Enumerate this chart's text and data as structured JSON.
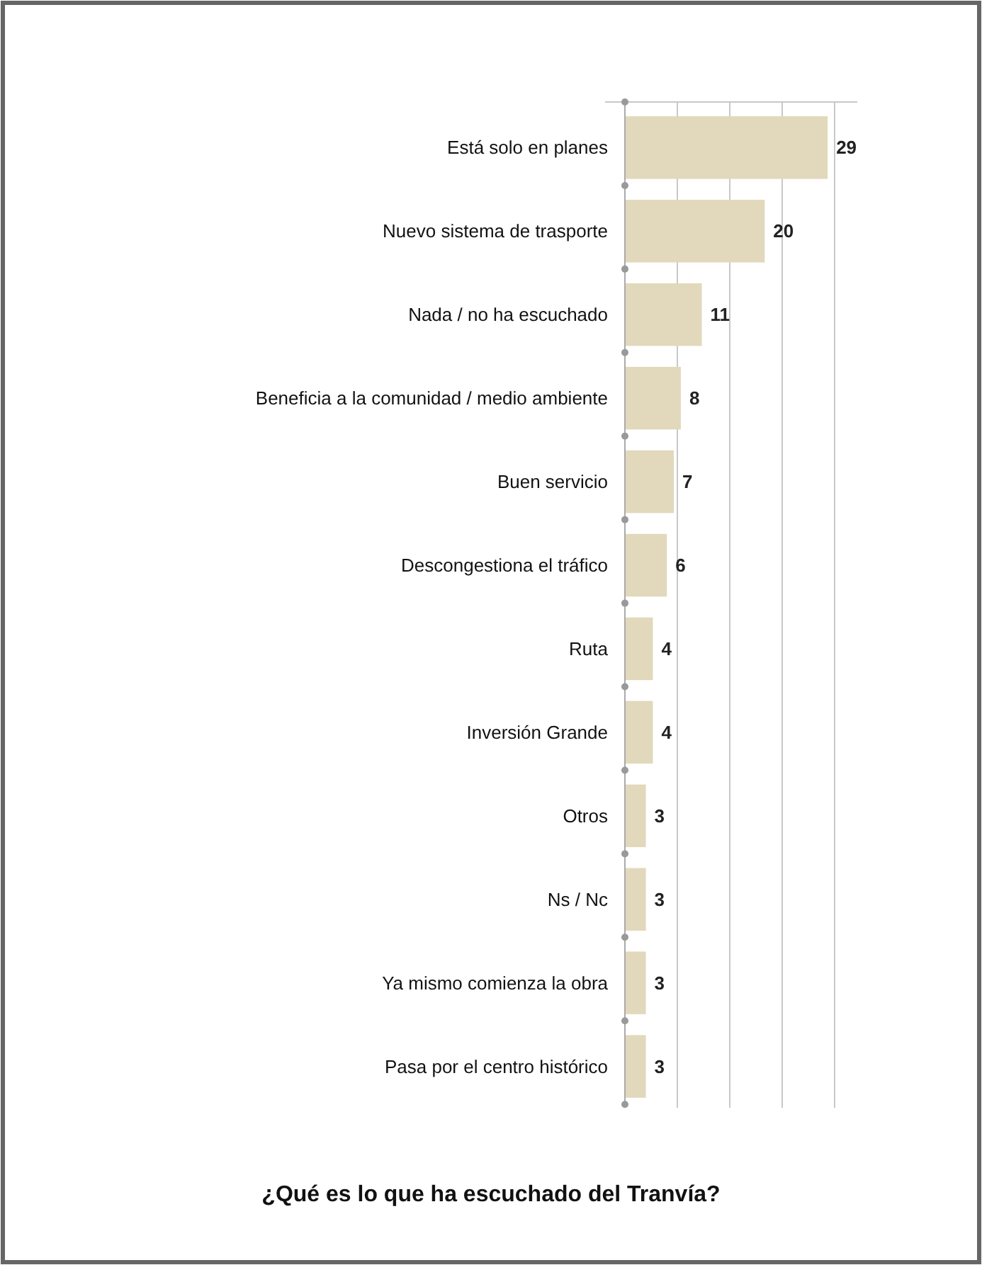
{
  "chart_data": {
    "type": "bar",
    "orientation": "horizontal",
    "title": "¿Qué es lo que ha escuchado del Tranvía?",
    "categories": [
      "Está solo en planes",
      "Nuevo sistema de trasporte",
      "Nada / no ha escuchado",
      "Beneficia a la comunidad / medio ambiente",
      "Buen servicio",
      "Descongestiona el tráfico",
      "Ruta",
      "Inversión Grande",
      "Otros",
      "Ns / Nc",
      "Ya mismo comienza la obra",
      "Pasa por el centro histórico"
    ],
    "values": [
      29,
      20,
      11,
      8,
      7,
      6,
      4,
      4,
      3,
      3,
      3,
      3
    ],
    "color": "#e2d8bb",
    "xlim": [
      0,
      30
    ],
    "xticks": [
      {
        "value": 0,
        "label": null
      },
      {
        "value": 7.5,
        "label": null
      },
      {
        "value": 15,
        "label": null
      },
      {
        "value": 22.5,
        "label": null
      },
      {
        "value": 30,
        "label": null
      }
    ],
    "tick_labels": "y",
    "grid": "x",
    "data_labels": true
  }
}
